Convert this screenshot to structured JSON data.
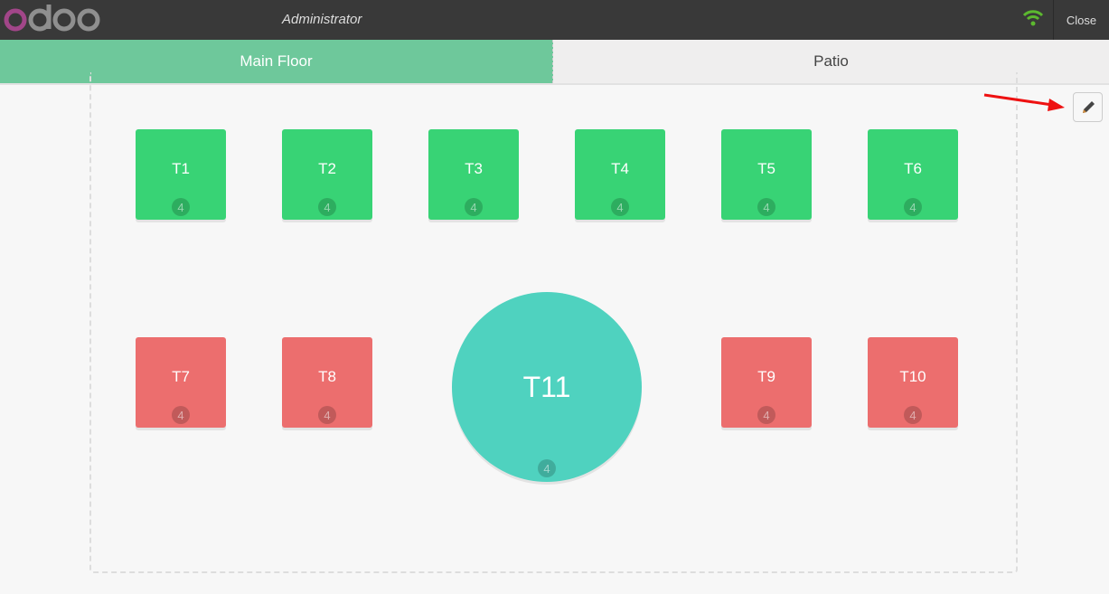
{
  "header": {
    "logo": "odoo",
    "user": "Administrator",
    "close_label": "Close",
    "connection_icon": "wifi-icon",
    "connection_color": "#5cb82f"
  },
  "floors": [
    {
      "label": "Main Floor",
      "active": true
    },
    {
      "label": "Patio",
      "active": false
    }
  ],
  "tables": [
    {
      "name": "T1",
      "seats": "4",
      "status": "available"
    },
    {
      "name": "T2",
      "seats": "4",
      "status": "available"
    },
    {
      "name": "T3",
      "seats": "4",
      "status": "available"
    },
    {
      "name": "T4",
      "seats": "4",
      "status": "available"
    },
    {
      "name": "T5",
      "seats": "4",
      "status": "available"
    },
    {
      "name": "T6",
      "seats": "4",
      "status": "available"
    },
    {
      "name": "T7",
      "seats": "4",
      "status": "occupied"
    },
    {
      "name": "T8",
      "seats": "4",
      "status": "occupied"
    },
    {
      "name": "T9",
      "seats": "4",
      "status": "occupied"
    },
    {
      "name": "T10",
      "seats": "4",
      "status": "occupied"
    },
    {
      "name": "T11",
      "seats": "4",
      "status": "round"
    }
  ],
  "colors": {
    "available": "#38d375",
    "occupied": "#ec6e6e",
    "round": "#4fd2bf",
    "active_tab": "#6ec89b",
    "annotation_arrow": "#ee1111"
  },
  "edit_icon": "pencil-icon"
}
